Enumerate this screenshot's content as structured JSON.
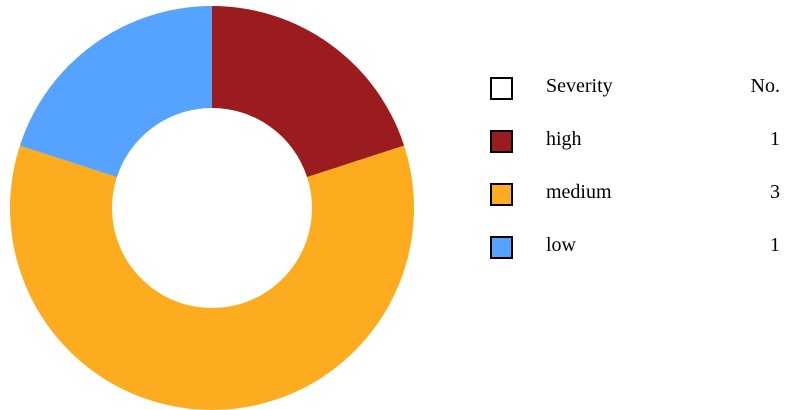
{
  "chart_data": {
    "type": "pie",
    "variant": "donut",
    "title": "",
    "legend_position": "right",
    "legend_header": {
      "label": "Severity",
      "count": "No."
    },
    "slices": [
      {
        "label": "high",
        "value": 1,
        "display_value": "1",
        "color": "#9B1C1F"
      },
      {
        "label": "medium",
        "value": 3,
        "display_value": "3",
        "color": "#FDAC1F"
      },
      {
        "label": "low",
        "value": 1,
        "display_value": "1",
        "color": "#55A2FF"
      }
    ],
    "start_angle_deg": 0,
    "direction": "clockwise"
  }
}
